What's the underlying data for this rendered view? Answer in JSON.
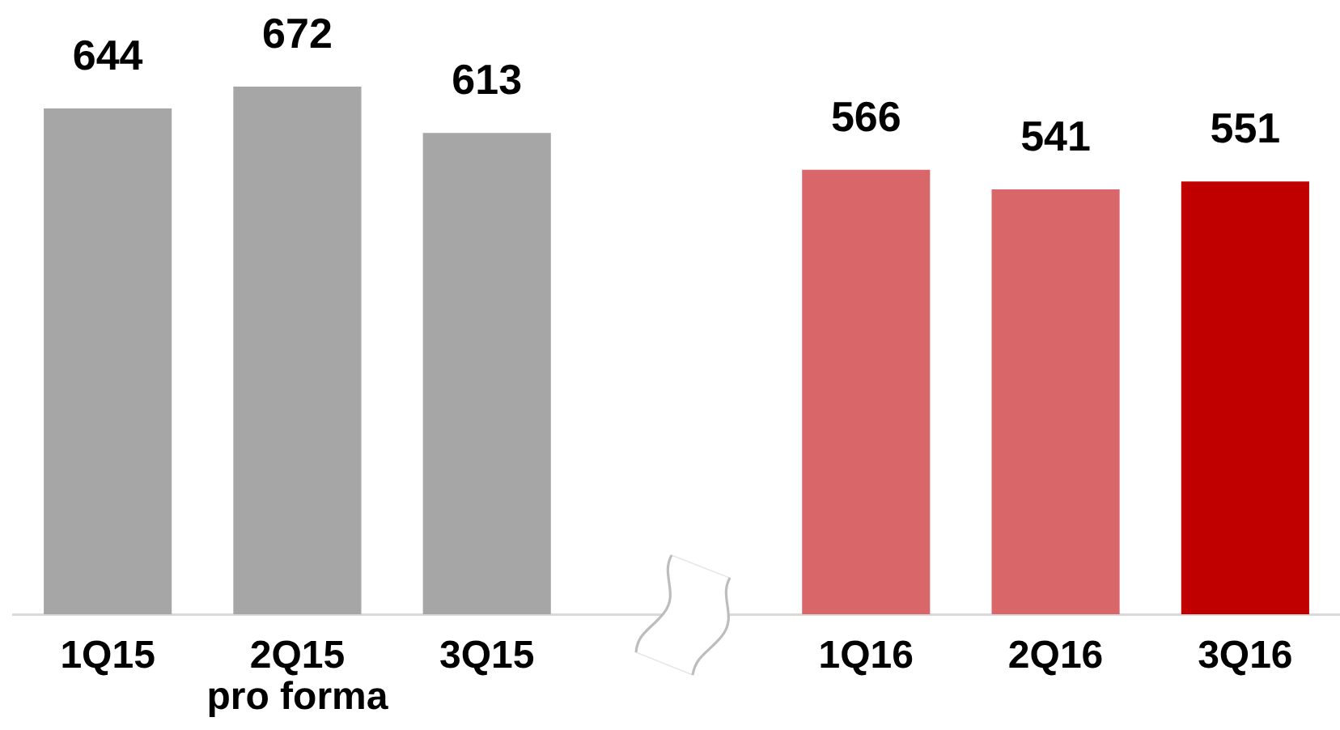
{
  "chart_data": {
    "type": "bar",
    "categories": [
      "1Q15",
      "2Q15\npro forma",
      "3Q15",
      null,
      "1Q16",
      "2Q16",
      "3Q16"
    ],
    "values": [
      644,
      672,
      613,
      null,
      566,
      541,
      551
    ],
    "colors": [
      "#a6a6a6",
      "#a6a6a6",
      "#a6a6a6",
      null,
      "#d9676a",
      "#d9676a",
      "#c00000"
    ],
    "data_labels": true
  }
}
